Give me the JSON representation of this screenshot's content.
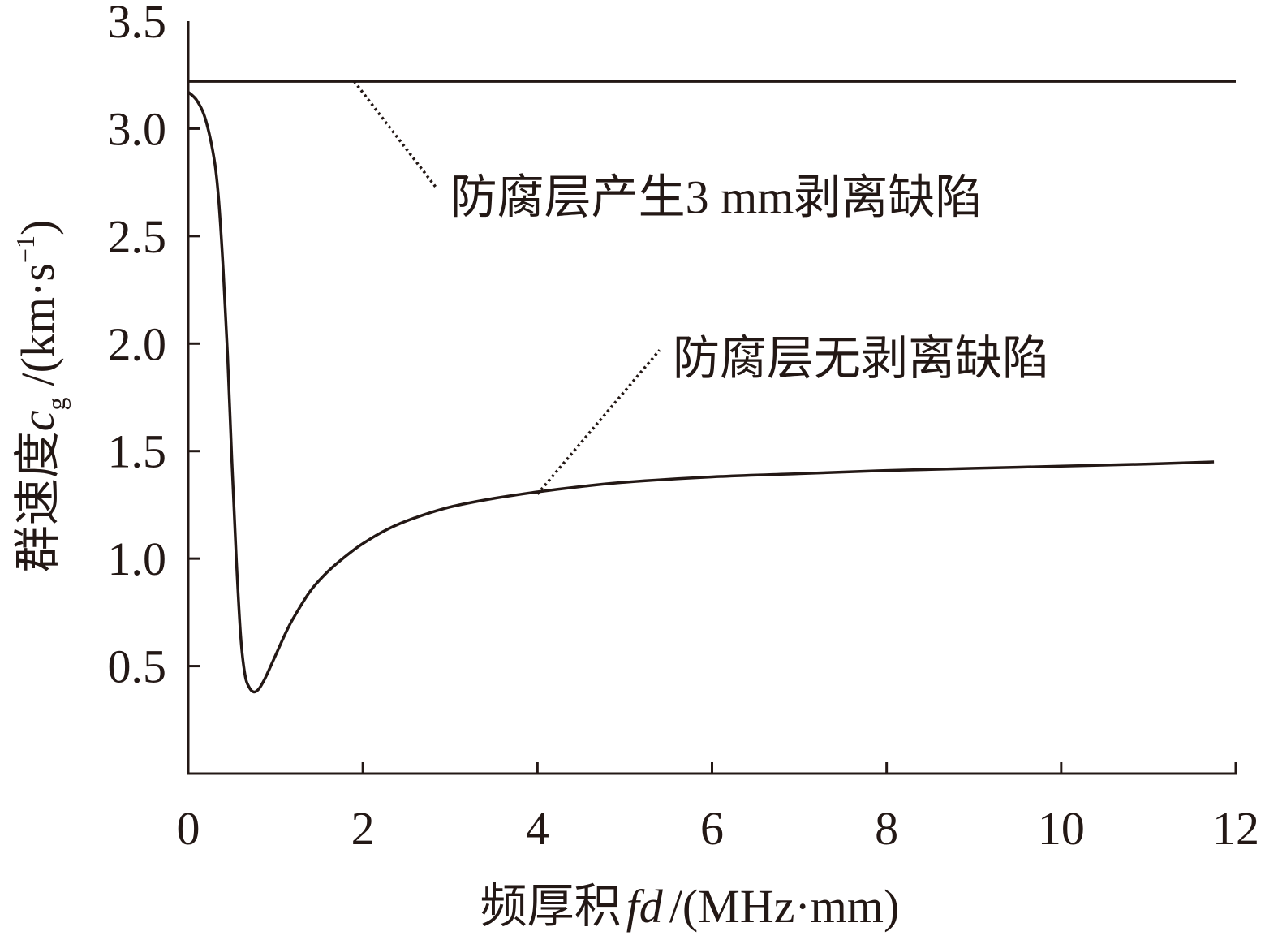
{
  "chart_data": {
    "type": "line",
    "xlabel": {
      "prefix": "频厚积",
      "var": "fd",
      "unit": "/(MHz·mm)"
    },
    "ylabel": {
      "prefix": "群速度",
      "var": "c",
      "sub": "g",
      "unit_pre": "/(km·s",
      "sup": "−1",
      "unit_post": ")"
    },
    "xlim": [
      0,
      12
    ],
    "ylim": [
      0,
      3.5
    ],
    "x_ticks": [
      0,
      2,
      4,
      6,
      8,
      10,
      12
    ],
    "y_ticks": [
      0.5,
      1.0,
      1.5,
      2.0,
      2.5,
      3.0,
      3.5
    ],
    "x_tick_labels": [
      "0",
      "2",
      "4",
      "6",
      "8",
      "10",
      "12"
    ],
    "y_tick_labels": [
      "0.5",
      "1.0",
      "1.5",
      "2.0",
      "2.5",
      "3.0",
      "3.5"
    ],
    "grid": false,
    "series": [
      {
        "x": [
          0,
          12
        ],
        "y": [
          3.22,
          3.22
        ]
      },
      {
        "x": [
          0,
          0.1,
          0.2,
          0.3,
          0.35,
          0.4,
          0.45,
          0.5,
          0.55,
          0.6,
          0.65,
          0.7,
          0.75,
          0.8,
          0.85,
          0.9,
          1.0,
          1.1,
          1.2,
          1.4,
          1.6,
          1.8,
          2.0,
          2.3,
          2.6,
          3.0,
          3.5,
          4.0,
          4.5,
          5.0,
          6.0,
          7.0,
          8.0,
          9.0,
          10.0,
          11.0,
          11.75
        ],
        "y": [
          3.17,
          3.13,
          3.04,
          2.85,
          2.66,
          2.35,
          1.95,
          1.45,
          1.0,
          0.64,
          0.46,
          0.4,
          0.38,
          0.39,
          0.42,
          0.46,
          0.55,
          0.64,
          0.72,
          0.85,
          0.94,
          1.01,
          1.07,
          1.14,
          1.19,
          1.24,
          1.28,
          1.31,
          1.335,
          1.355,
          1.38,
          1.395,
          1.41,
          1.42,
          1.43,
          1.44,
          1.45
        ]
      }
    ],
    "annotations": [
      {
        "text": "防腐层产生3 mm剥离缺陷",
        "leader_from": [
          1.9,
          3.22
        ],
        "leader_to": [
          2.85,
          2.72
        ]
      },
      {
        "text": "防腐层无剥离缺陷",
        "leader_from": [
          4.0,
          1.3
        ],
        "leader_to": [
          5.4,
          1.97
        ]
      }
    ]
  }
}
